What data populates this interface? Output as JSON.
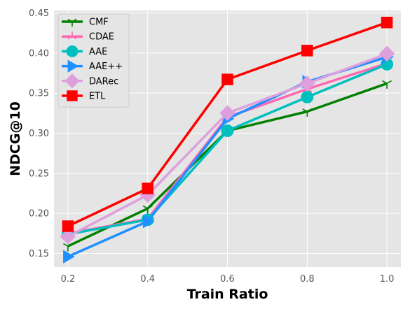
{
  "chart_data": {
    "type": "line",
    "title": "",
    "xlabel": "Train Ratio",
    "ylabel": "NDCG@10",
    "x": [
      0.2,
      0.4,
      0.6,
      0.8,
      1.0
    ],
    "xticks": [
      "0.2",
      "0.4",
      "0.6",
      "0.8",
      "1.0"
    ],
    "yticks": [
      "0.15",
      "0.20",
      "0.25",
      "0.30",
      "0.35",
      "0.40",
      "0.45"
    ],
    "xlim": [
      0.165,
      1.035
    ],
    "ylim": [
      0.133,
      0.453
    ],
    "grid": true,
    "legend_position": "top-left",
    "series": [
      {
        "name": "CMF",
        "color": "#008000",
        "marker": "tri_down",
        "values": [
          0.159,
          0.206,
          0.303,
          0.327,
          0.362
        ]
      },
      {
        "name": "CDAE",
        "color": "#ff69b4",
        "marker": "tri_up",
        "values": [
          0.175,
          0.193,
          0.32,
          0.355,
          0.387
        ]
      },
      {
        "name": "AAE",
        "color": "#00bfbf",
        "marker": "circle",
        "values": [
          0.174,
          0.192,
          0.303,
          0.345,
          0.386
        ]
      },
      {
        "name": "AAE++",
        "color": "#1e90ff",
        "marker": "triangle-right",
        "values": [
          0.146,
          0.19,
          0.318,
          0.364,
          0.395
        ]
      },
      {
        "name": "DARec",
        "color": "#dda0dd",
        "marker": "diamond",
        "values": [
          0.171,
          0.223,
          0.325,
          0.362,
          0.399
        ]
      },
      {
        "name": "ETL",
        "color": "#ff0000",
        "marker": "square",
        "values": [
          0.184,
          0.231,
          0.367,
          0.403,
          0.438
        ]
      }
    ]
  }
}
